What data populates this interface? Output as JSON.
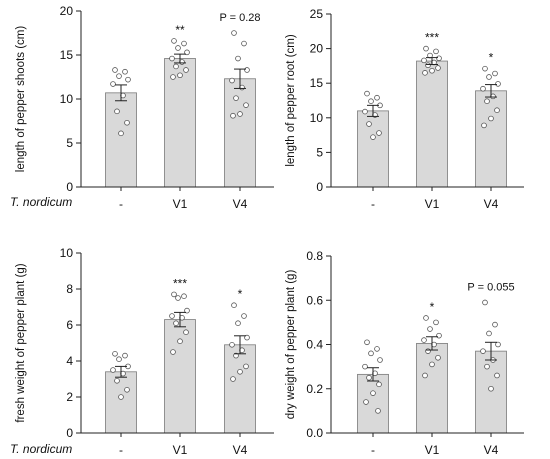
{
  "row_label": "T. nordicum",
  "chart_data": [
    {
      "type": "bar",
      "ylabel": "length of pepper shoots (cm)",
      "ylim": [
        0,
        20
      ],
      "yticks": [
        "0",
        "5",
        "10",
        "15",
        "20"
      ],
      "categories": [
        "-",
        "V1",
        "V4"
      ],
      "values": [
        10.7,
        14.6,
        12.3
      ],
      "errors": [
        0.9,
        0.5,
        1.1
      ],
      "annotations": [
        "",
        "**",
        "P = 0.28"
      ],
      "points": [
        [
          13.3,
          13.1,
          12.6,
          12.2,
          11.7,
          10.4,
          8.6,
          7.3,
          6.1
        ],
        [
          16.6,
          16.3,
          15.8,
          15.3,
          14.6,
          14.2,
          13.7,
          13.3,
          12.7,
          12.5
        ],
        [
          17.5,
          16.3,
          14.6,
          13.3,
          12.1,
          11.3,
          10.1,
          9.3,
          8.3,
          8.1
        ]
      ]
    },
    {
      "type": "bar",
      "ylabel": "length of pepper root (cm)",
      "ylim": [
        0,
        25
      ],
      "yticks": [
        "0",
        "5",
        "10",
        "15",
        "20",
        "25"
      ],
      "categories": [
        "-",
        "V1",
        "V4"
      ],
      "values": [
        11.0,
        18.2,
        13.9
      ],
      "errors": [
        0.8,
        0.5,
        0.9
      ],
      "annotations": [
        "",
        "***",
        "*"
      ],
      "points": [
        [
          13.5,
          12.9,
          12.4,
          11.8,
          10.9,
          10.4,
          9.1,
          7.8,
          7.2
        ],
        [
          20.0,
          19.6,
          19.0,
          18.6,
          18.3,
          18.0,
          17.6,
          17.2,
          16.8,
          16.5
        ],
        [
          17.1,
          16.4,
          15.9,
          14.9,
          14.2,
          13.1,
          12.4,
          11.1,
          9.9,
          8.9
        ]
      ]
    },
    {
      "type": "bar",
      "ylabel": "fresh weight of pepper plant (g)",
      "ylim": [
        0,
        10
      ],
      "yticks": [
        "0",
        "2",
        "4",
        "6",
        "8",
        "10"
      ],
      "categories": [
        "-",
        "V1",
        "V4"
      ],
      "values": [
        3.4,
        6.3,
        4.9
      ],
      "errors": [
        0.3,
        0.4,
        0.5
      ],
      "annotations": [
        "",
        "***",
        "*"
      ],
      "points": [
        [
          4.4,
          4.3,
          4.1,
          3.7,
          3.5,
          3.3,
          2.9,
          2.4,
          2.0
        ],
        [
          7.7,
          7.6,
          7.5,
          6.8,
          6.5,
          6.4,
          6.1,
          5.6,
          5.1,
          4.5
        ],
        [
          7.1,
          6.5,
          6.1,
          5.3,
          4.9,
          4.6,
          4.3,
          3.7,
          3.4,
          3.0
        ]
      ]
    },
    {
      "type": "bar",
      "ylabel": "dry weight of pepper plant (g)",
      "ylim": [
        0,
        0.8
      ],
      "yticks": [
        "0.0",
        "0.2",
        "0.4",
        "0.6",
        "0.8"
      ],
      "categories": [
        "-",
        "V1",
        "V4"
      ],
      "values": [
        0.265,
        0.405,
        0.37
      ],
      "errors": [
        0.03,
        0.03,
        0.04
      ],
      "annotations": [
        "",
        "*",
        "P = 0.055"
      ],
      "points": [
        [
          0.41,
          0.38,
          0.36,
          0.33,
          0.3,
          0.27,
          0.25,
          0.22,
          0.18,
          0.14,
          0.1
        ],
        [
          0.52,
          0.5,
          0.47,
          0.44,
          0.42,
          0.4,
          0.37,
          0.34,
          0.31,
          0.26
        ],
        [
          0.59,
          0.49,
          0.45,
          0.4,
          0.37,
          0.33,
          0.3,
          0.26,
          0.2
        ]
      ]
    }
  ]
}
